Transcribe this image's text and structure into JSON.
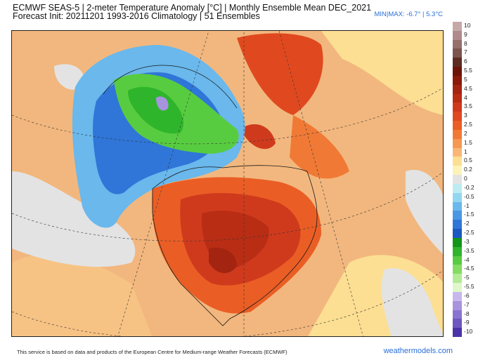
{
  "header": {
    "title_line1": "ECMWF SEAS-5 | 2-meter Temperature Anomaly [°C] | Monthly Ensemble Mean DEC_2021",
    "title_line2": "Forecast Init: 20211201     1993-2016 Climatology | 51 Ensembles",
    "minmax": "MIN|MAX: -6.7° | 5.3°C"
  },
  "legend": {
    "labels": [
      "10",
      "9",
      "8",
      "7",
      "6",
      "5.5",
      "5",
      "4.5",
      "4",
      "3.5",
      "3",
      "2.5",
      "2",
      "1.5",
      "1",
      "0.5",
      "0.2",
      "0",
      "-0.2",
      "-0.5",
      "-1",
      "-1.5",
      "-2",
      "-2.5",
      "-3",
      "-3.5",
      "-4",
      "-4.5",
      "-5",
      "-5.5",
      "-6",
      "-7",
      "-8",
      "-9",
      "-10"
    ],
    "colors": [
      "#c7a8a8",
      "#b08b8b",
      "#96706d",
      "#7b5550",
      "#5e2b22",
      "#6d1408",
      "#8a1a0a",
      "#a32410",
      "#b92d15",
      "#cf3a1d",
      "#e0491f",
      "#ea5e25",
      "#f07a35",
      "#f59852",
      "#f8b776",
      "#fcdf93",
      "#fdf3b7",
      "#e3e3e3",
      "#bcecf2",
      "#92d7ef",
      "#6ab8ec",
      "#4a98e3",
      "#2f76d8",
      "#1c58c2",
      "#12961a",
      "#2fb52c",
      "#58cc40",
      "#84dc62",
      "#b3eb97",
      "#dff7cb",
      "#c8b7ec",
      "#a893de",
      "#8a74cf",
      "#6d58bf",
      "#4a33a8"
    ]
  },
  "footer": {
    "disclaimer": "This service is based on data and products of the European Centre for Medium-range Weather Forecasts (ECMWF)",
    "credit": "weathermodels.com"
  }
}
